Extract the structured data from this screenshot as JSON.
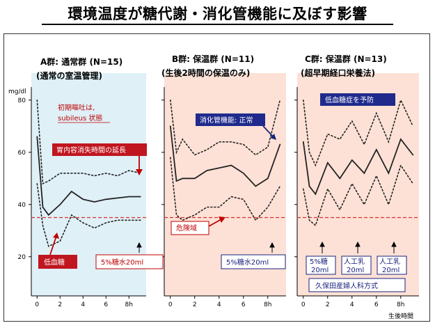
{
  "title": "環境温度が糖代謝・消化管機能に及ぼす影響",
  "y_unit": "mg/dl",
  "x_unit": "生後時間",
  "colors": {
    "panel_a_bg": "#dff0f7",
    "panel_bc_bg": "#fde1d6",
    "danger_line": "#d9302c",
    "red_box": "#c0161f",
    "navy_box": "#1f2a8c",
    "annotation_red": "#c00000",
    "annotation_navy": "#1a237e"
  },
  "annotations": {
    "a_vomit_1": "初期嘔吐は,",
    "a_vomit_2": "subileus 状態",
    "a_gastric": "胃内容消失時間の延長",
    "a_hypo": "低血糖",
    "a_glucose": "5%糖水20ml",
    "b_gi": "消化管機能: 正常",
    "b_danger": "危険域",
    "b_glucose": "5%糖水20ml",
    "c_prevent": "低血糖症を予防",
    "c_feed1_l1": "5%糖",
    "c_feed1_l2": "20ml",
    "c_feed2_l1": "人工乳",
    "c_feed2_l2": "20ml",
    "c_feed3_l1": "人工乳",
    "c_feed3_l2": "20ml",
    "c_method": "久保田産婦人科方式"
  },
  "chart_data": [
    {
      "type": "line",
      "panel": "A",
      "title": "A群: 通常群 (N=15)",
      "subtitle": "(通常の室温管理)",
      "xlabel": "",
      "ylabel": "mg/dl",
      "xlim": [
        -0.5,
        9.5
      ],
      "ylim": [
        5,
        85
      ],
      "xticks": [
        0,
        2,
        4,
        6,
        8
      ],
      "xtick_labels": [
        "0",
        "2",
        "4",
        "6",
        "8h"
      ],
      "yticks": [
        20,
        40,
        60,
        80
      ],
      "danger_threshold": 35,
      "series": [
        {
          "style": "dotted-upper",
          "x": [
            0,
            0.5,
            1,
            2,
            3,
            4,
            5,
            6,
            7,
            8,
            9
          ],
          "y": [
            80,
            48,
            49,
            52,
            52,
            52,
            51,
            52,
            51,
            53,
            52
          ]
        },
        {
          "style": "mean",
          "x": [
            0,
            0.5,
            1,
            2,
            3,
            4,
            5,
            6,
            7,
            8,
            9
          ],
          "y": [
            66,
            39,
            36,
            40,
            45,
            42,
            41,
            42,
            42.5,
            43,
            43
          ]
        },
        {
          "style": "dotted-lower",
          "x": [
            0,
            0.5,
            1,
            2,
            3,
            4,
            5,
            6,
            7,
            8,
            9
          ],
          "y": [
            48,
            32,
            24,
            26,
            36,
            33,
            31,
            33,
            34,
            34,
            34
          ]
        }
      ]
    },
    {
      "type": "line",
      "panel": "B",
      "title": "B群: 保温群 (N=11)",
      "subtitle": "(生後2時間の保温のみ)",
      "xlabel": "",
      "ylabel": "",
      "xlim": [
        -0.5,
        9.5
      ],
      "ylim": [
        5,
        85
      ],
      "xticks": [
        0,
        2,
        4,
        6,
        8
      ],
      "xtick_labels": [
        "0",
        "2",
        "4",
        "6",
        "8h"
      ],
      "yticks": [
        20,
        40,
        60,
        80
      ],
      "danger_threshold": 35,
      "series": [
        {
          "style": "dotted-upper",
          "x": [
            0,
            0.5,
            1,
            2,
            3,
            4,
            5,
            6,
            7,
            8,
            9
          ],
          "y": [
            80,
            60,
            65,
            59,
            61,
            64,
            64,
            63,
            59,
            62,
            80
          ]
        },
        {
          "style": "mean",
          "x": [
            0,
            0.5,
            1,
            2,
            3,
            4,
            5,
            6,
            7,
            8,
            9
          ],
          "y": [
            70,
            49,
            50,
            50,
            53,
            54,
            55,
            52,
            47,
            50,
            63
          ]
        },
        {
          "style": "dotted-lower",
          "x": [
            0,
            0.5,
            1,
            2,
            3,
            4,
            5,
            6,
            7,
            8,
            9
          ],
          "y": [
            58,
            36,
            34,
            36,
            39,
            39,
            43,
            42,
            34,
            39,
            47
          ]
        }
      ]
    },
    {
      "type": "line",
      "panel": "C",
      "title": "C群: 保温群 (N=13)",
      "subtitle": "(超早期経口栄養法)",
      "xlabel": "生後時間",
      "ylabel": "",
      "xlim": [
        -0.5,
        9.5
      ],
      "ylim": [
        5,
        85
      ],
      "xticks": [
        0,
        2,
        4,
        6,
        8
      ],
      "xtick_labels": [
        "0",
        "2",
        "4",
        "6",
        "8h"
      ],
      "yticks": [
        20,
        40,
        60,
        80
      ],
      "danger_threshold": 35,
      "series": [
        {
          "style": "dotted-upper",
          "x": [
            0,
            0.5,
            1,
            2,
            3,
            4,
            5,
            6,
            7,
            8,
            9
          ],
          "y": [
            80,
            60,
            55,
            67,
            65,
            72,
            63,
            75,
            64,
            80,
            70
          ]
        },
        {
          "style": "mean",
          "x": [
            0,
            0.5,
            1,
            2,
            3,
            4,
            5,
            6,
            7,
            8,
            9
          ],
          "y": [
            64,
            47,
            44,
            56,
            50,
            57,
            52,
            61,
            52,
            65,
            59
          ]
        },
        {
          "style": "dotted-lower",
          "x": [
            0,
            0.5,
            1,
            2,
            3,
            4,
            5,
            6,
            7,
            8,
            9
          ],
          "y": [
            46,
            34,
            32,
            46,
            38,
            48,
            40,
            51,
            40,
            55,
            48
          ]
        }
      ]
    }
  ]
}
